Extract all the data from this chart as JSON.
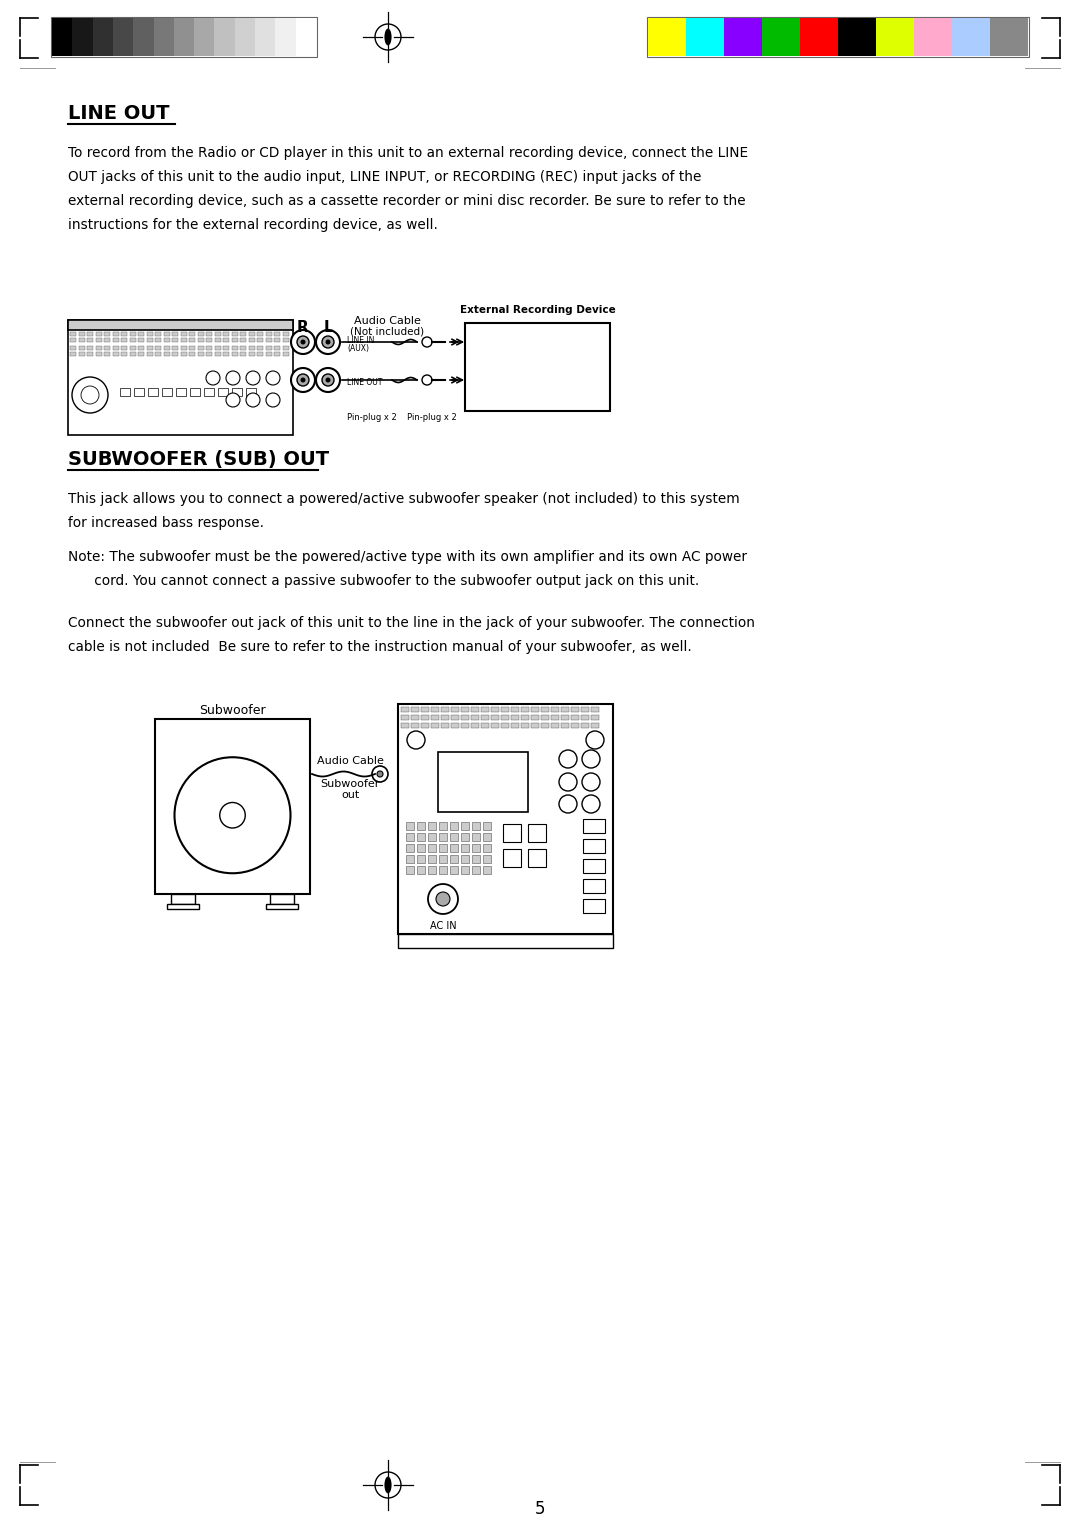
{
  "page_bg": "#ffffff",
  "title1": "LINE OUT",
  "title2": "SUBWOOFER (SUB) OUT",
  "body1_lines": [
    "To record from the Radio or CD player in this unit to an external recording device, connect the LINE",
    "OUT jacks of this unit to the audio input, LINE INPUT, or RECORDING (REC) input jacks of the",
    "external recording device, such as a cassette recorder or mini disc recorder. Be sure to refer to the",
    "instructions for the external recording device, as well."
  ],
  "body2_lines": [
    "This jack allows you to connect a powered/active subwoofer speaker (not included) to this system",
    "for increased bass response."
  ],
  "body3_lines": [
    "Note: The subwoofer must be the powered/active type with its own amplifier and its own AC power",
    "      cord. You cannot connect a passive subwoofer to the subwoofer output jack on this unit."
  ],
  "body4_lines": [
    "Connect the subwoofer out jack of this unit to the line in the jack of your subwoofer. The connection",
    "cable is not included  Be sure to refer to the instruction manual of your subwoofer, as well."
  ],
  "page_number": "5",
  "grayscale_colors": [
    "#000000",
    "#181818",
    "#303030",
    "#484848",
    "#606060",
    "#787878",
    "#909090",
    "#a8a8a8",
    "#c0c0c0",
    "#d0d0d0",
    "#e0e0e0",
    "#f0f0f0",
    "#ffffff"
  ],
  "color_bars": [
    "#ffff00",
    "#00ffff",
    "#8800ff",
    "#00bb00",
    "#ff0000",
    "#000000",
    "#ddff00",
    "#ffaacc",
    "#aaccff",
    "#888888"
  ],
  "text_color": "#000000",
  "diagram_line_color": "#000000",
  "header_strip_border": "#666666",
  "corner_line_color": "#000000",
  "separator_line_color": "#999999"
}
